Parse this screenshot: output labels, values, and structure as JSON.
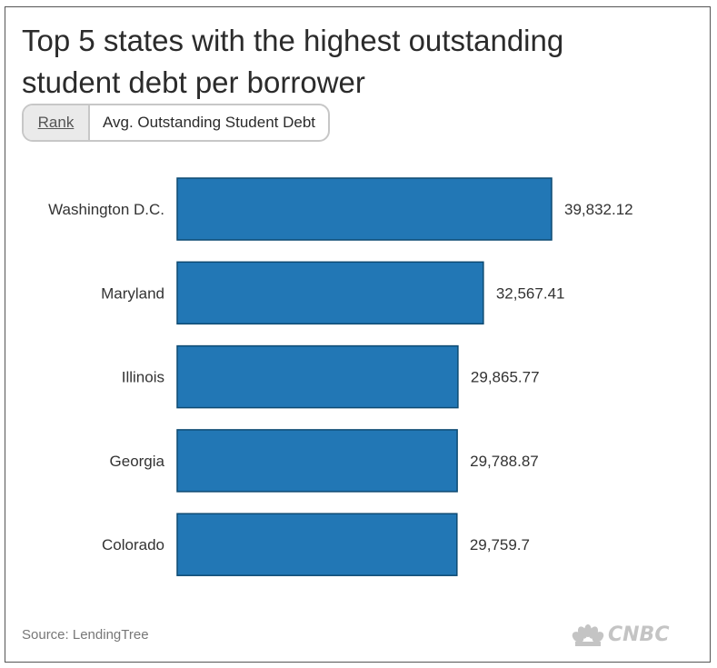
{
  "title": "Top 5 states with the highest outstanding student debt per borrower",
  "toggle": {
    "rank_label": "Rank",
    "avg_label": "Avg. Outstanding Student Debt"
  },
  "source": "Source: LendingTree",
  "logo_text": "CNBC",
  "colors": {
    "bar": "#2277b5",
    "bar_border": "#0d4a72"
  },
  "chart_data": {
    "type": "bar",
    "orientation": "horizontal",
    "categories": [
      "Washington D.C.",
      "Maryland",
      "Illinois",
      "Georgia",
      "Colorado"
    ],
    "values": [
      39832.12,
      32567.41,
      29865.77,
      29788.87,
      29759.7
    ],
    "value_labels": [
      "39,832.12",
      "32,567.41",
      "29,865.77",
      "29,788.87",
      "29,759.7"
    ],
    "title": "Top 5 states with the highest outstanding student debt per borrower",
    "xlim": [
      0,
      39832.12
    ],
    "grid": false,
    "legend": "none"
  }
}
